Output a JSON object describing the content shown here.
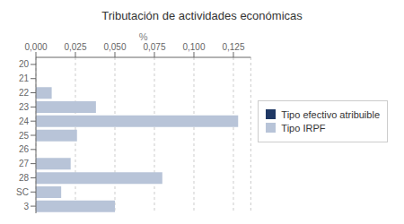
{
  "chart_data": {
    "type": "bar",
    "orientation": "horizontal",
    "title": "Tributación de actividades económicas",
    "xlabel": "%",
    "categories": [
      "20",
      "21",
      "22",
      "23",
      "24",
      "25",
      "26",
      "27",
      "28",
      "SC",
      "3"
    ],
    "series": [
      {
        "name": "Tipo efectivo atribuible",
        "color": "#1f3864",
        "values": [
          0.0,
          0.0,
          0.0,
          0.0,
          0.0,
          0.0,
          0.0,
          0.0,
          0.0,
          0.0,
          0.0
        ]
      },
      {
        "name": "Tipo IRPF",
        "color": "#b8c4d8",
        "values": [
          0.0,
          0.0,
          0.01,
          0.038,
          0.128,
          0.026,
          0.0,
          0.022,
          0.08,
          0.016,
          0.05
        ]
      }
    ],
    "xlim": [
      0,
      0.136
    ],
    "xticks": [
      {
        "value": 0.0,
        "label": "0,000"
      },
      {
        "value": 0.025,
        "label": "0,025"
      },
      {
        "value": 0.05,
        "label": "0,050"
      },
      {
        "value": 0.075,
        "label": "0,075"
      },
      {
        "value": 0.1,
        "label": "0,100"
      },
      {
        "value": 0.125,
        "label": "0,125"
      }
    ],
    "grid": true,
    "legend": "right"
  }
}
